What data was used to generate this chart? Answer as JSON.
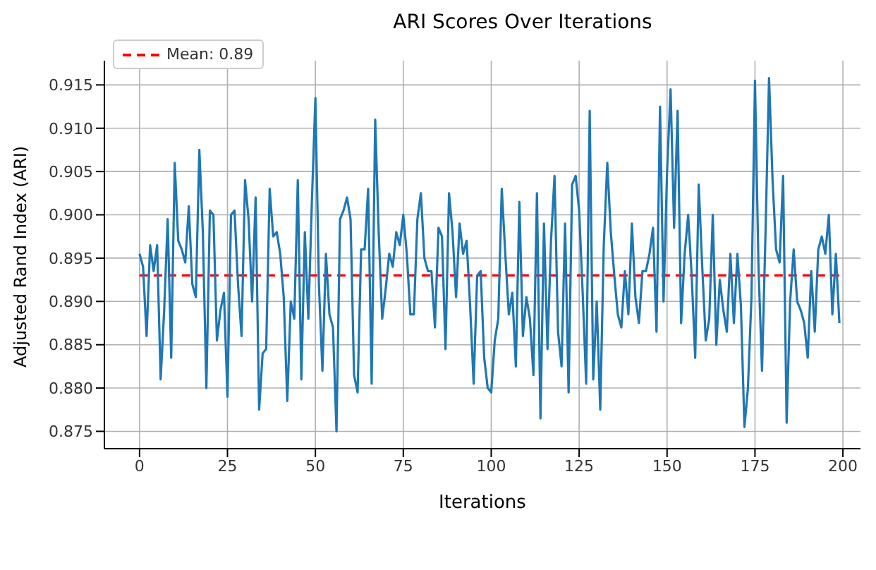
{
  "chart_data": {
    "type": "line",
    "title": "ARI Scores Over Iterations",
    "xlabel": "Iterations",
    "ylabel": "Adjusted Rand Index (ARI)",
    "x": [
      0,
      1,
      2,
      3,
      4,
      5,
      6,
      7,
      8,
      9,
      10,
      11,
      12,
      13,
      14,
      15,
      16,
      17,
      18,
      19,
      20,
      21,
      22,
      23,
      24,
      25,
      26,
      27,
      28,
      29,
      30,
      31,
      32,
      33,
      34,
      35,
      36,
      37,
      38,
      39,
      40,
      41,
      42,
      43,
      44,
      45,
      46,
      47,
      48,
      49,
      50,
      51,
      52,
      53,
      54,
      55,
      56,
      57,
      58,
      59,
      60,
      61,
      62,
      63,
      64,
      65,
      66,
      67,
      68,
      69,
      70,
      71,
      72,
      73,
      74,
      75,
      76,
      77,
      78,
      79,
      80,
      81,
      82,
      83,
      84,
      85,
      86,
      87,
      88,
      89,
      90,
      91,
      92,
      93,
      94,
      95,
      96,
      97,
      98,
      99,
      100,
      101,
      102,
      103,
      104,
      105,
      106,
      107,
      108,
      109,
      110,
      111,
      112,
      113,
      114,
      115,
      116,
      117,
      118,
      119,
      120,
      121,
      122,
      123,
      124,
      125,
      126,
      127,
      128,
      129,
      130,
      131,
      132,
      133,
      134,
      135,
      136,
      137,
      138,
      139,
      140,
      141,
      142,
      143,
      144,
      145,
      146,
      147,
      148,
      149,
      150,
      151,
      152,
      153,
      154,
      155,
      156,
      157,
      158,
      159,
      160,
      161,
      162,
      163,
      164,
      165,
      166,
      167,
      168,
      169,
      170,
      171,
      172,
      173,
      174,
      175,
      176,
      177,
      178,
      179,
      180,
      181,
      182,
      183,
      184,
      185,
      186,
      187,
      188,
      189,
      190,
      191,
      192,
      193,
      194,
      195,
      196,
      197,
      198,
      199
    ],
    "series": [
      {
        "color": "#1f77b4",
        "values": [
          0.8955,
          0.894,
          0.886,
          0.8965,
          0.8935,
          0.8965,
          0.881,
          0.889,
          0.8995,
          0.8835,
          0.906,
          0.897,
          0.896,
          0.8945,
          0.901,
          0.892,
          0.8905,
          0.9075,
          0.898,
          0.88,
          0.9005,
          0.9,
          0.8855,
          0.889,
          0.891,
          0.879,
          0.9,
          0.9005,
          0.892,
          0.886,
          0.904,
          0.8995,
          0.89,
          0.902,
          0.8775,
          0.884,
          0.8845,
          0.903,
          0.8975,
          0.898,
          0.8955,
          0.8905,
          0.8785,
          0.89,
          0.888,
          0.904,
          0.881,
          0.898,
          0.888,
          0.9015,
          0.9135,
          0.892,
          0.882,
          0.8955,
          0.8885,
          0.887,
          0.875,
          0.8995,
          0.9005,
          0.902,
          0.8995,
          0.8815,
          0.8795,
          0.896,
          0.896,
          0.903,
          0.8805,
          0.911,
          0.898,
          0.888,
          0.8915,
          0.8955,
          0.894,
          0.898,
          0.8965,
          0.9,
          0.8955,
          0.8885,
          0.8885,
          0.8995,
          0.9025,
          0.895,
          0.8935,
          0.8935,
          0.887,
          0.8985,
          0.8975,
          0.8845,
          0.9025,
          0.898,
          0.8905,
          0.899,
          0.8955,
          0.897,
          0.8895,
          0.8805,
          0.893,
          0.8935,
          0.8835,
          0.88,
          0.8795,
          0.8855,
          0.888,
          0.903,
          0.8955,
          0.8885,
          0.891,
          0.8825,
          0.9015,
          0.886,
          0.8905,
          0.888,
          0.8815,
          0.9025,
          0.8765,
          0.899,
          0.8845,
          0.897,
          0.9045,
          0.8865,
          0.8825,
          0.899,
          0.8795,
          0.9035,
          0.9045,
          0.9005,
          0.891,
          0.8805,
          0.912,
          0.881,
          0.89,
          0.8775,
          0.8965,
          0.906,
          0.898,
          0.893,
          0.8885,
          0.887,
          0.8935,
          0.8885,
          0.899,
          0.8905,
          0.8875,
          0.8935,
          0.8935,
          0.8955,
          0.8985,
          0.8865,
          0.9125,
          0.89,
          0.905,
          0.9145,
          0.8985,
          0.912,
          0.8875,
          0.8955,
          0.9,
          0.893,
          0.8835,
          0.9035,
          0.894,
          0.8855,
          0.888,
          0.9,
          0.885,
          0.8925,
          0.889,
          0.8865,
          0.8955,
          0.8875,
          0.8955,
          0.8895,
          0.8755,
          0.88,
          0.8905,
          0.9155,
          0.894,
          0.882,
          0.898,
          0.9158,
          0.904,
          0.896,
          0.8945,
          0.9045,
          0.876,
          0.89,
          0.896,
          0.89,
          0.889,
          0.8875,
          0.8835,
          0.8935,
          0.8865,
          0.896,
          0.8975,
          0.8955,
          0.9,
          0.8885,
          0.8955,
          0.8875
        ]
      }
    ],
    "xlim": [
      -10,
      205
    ],
    "xticks": [
      0,
      25,
      50,
      75,
      100,
      125,
      150,
      175,
      200
    ],
    "ylim": [
      0.873,
      0.9178
    ],
    "yticks": [
      0.875,
      {
        "value": 0.88,
        "label": "0.880"
      },
      0.885,
      {
        "value": 0.89,
        "label": "0.890"
      },
      0.895,
      {
        "value": 0.9,
        "label": "0.900"
      },
      0.905,
      {
        "value": 0.91,
        "label": "0.910"
      },
      0.915
    ],
    "ref_lines": [
      {
        "axis": "y",
        "value": 0.893,
        "label": "Mean: 0.89",
        "color": "#ff0000",
        "line_style": "dashed"
      }
    ],
    "grid": true,
    "legend": "top left",
    "marker": "none",
    "line_style": "solid"
  }
}
